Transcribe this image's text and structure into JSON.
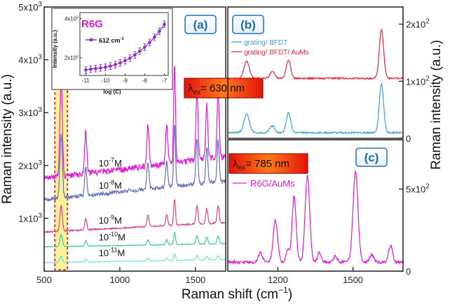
{
  "chart_data": [
    {
      "type": "line",
      "panel_label": "(a)",
      "xlabel": "Raman shift (cm",
      "xlabel_sup": "−1",
      "xlabel_end": ")",
      "ylabel": "Raman intensity (a.u.)",
      "xlim": [
        500,
        1700
      ],
      "ylim": [
        0,
        5000
      ],
      "x_ticks": [
        {
          "v": 500,
          "t": "500"
        },
        {
          "v": 1000,
          "t": "1000"
        },
        {
          "v": 1500,
          "t": "1500"
        }
      ],
      "y_ticks": [
        {
          "v": 1000,
          "m": "1x10",
          "e": "3"
        },
        {
          "v": 2000,
          "m": "2x10",
          "e": "3"
        },
        {
          "v": 3000,
          "m": "3x10",
          "e": "3"
        },
        {
          "v": 4000,
          "m": "4x10",
          "e": "3"
        },
        {
          "v": 5000,
          "m": "5x10",
          "e": "3"
        }
      ],
      "excitation": {
        "prefix": "λ",
        "sub": "ex",
        "text": "= 630 nm"
      },
      "highlight_peak": 612,
      "peaks": [
        {
          "x": 612,
          "w": 8,
          "rel": 1.0
        },
        {
          "x": 775,
          "w": 7,
          "rel": 0.45
        },
        {
          "x": 1186,
          "w": 7,
          "rel": 0.42
        },
        {
          "x": 1310,
          "w": 7,
          "rel": 0.4
        },
        {
          "x": 1362,
          "w": 6,
          "rel": 1.0
        },
        {
          "x": 1510,
          "w": 7,
          "rel": 0.7
        },
        {
          "x": 1575,
          "w": 7,
          "rel": 0.55
        },
        {
          "x": 1650,
          "w": 7,
          "rel": 0.65
        }
      ],
      "series": [
        {
          "name": "10",
          "exp": "-7",
          "unit": "M",
          "color": "#e018d8",
          "baseline": 1750,
          "slope": 0.35,
          "scale": 1850,
          "label_x": 860
        },
        {
          "name": "10",
          "exp": "-8",
          "unit": "M",
          "color": "#6470b8",
          "baseline": 1350,
          "slope": 0.3,
          "scale": 1200,
          "label_x": 860
        },
        {
          "name": "10",
          "exp": "-9",
          "unit": "M",
          "color": "#d8448c",
          "baseline": 740,
          "slope": 0.15,
          "scale": 500,
          "label_x": 860
        },
        {
          "name": "10",
          "exp": "-10",
          "unit": "M",
          "color": "#3cc8a0",
          "baseline": 460,
          "slope": 0.05,
          "scale": 230,
          "label_x": 860
        },
        {
          "name": "10",
          "exp": "-11",
          "unit": "M",
          "color": "#70e0c8",
          "baseline": 160,
          "slope": 0.05,
          "scale": 120,
          "label_x": 860
        }
      ],
      "inset": {
        "title": "R6G",
        "legend": "612 cm",
        "legend_sup": "-1",
        "xlabel": "log (C)",
        "ylabel": "Intensity (a.u.)",
        "xlim": [
          -11.3,
          -6.8
        ],
        "ylim": [
          1100,
          4300
        ],
        "x_ticks": [
          -11,
          -10,
          -9,
          -8,
          -7
        ],
        "y_ticks": [
          {
            "v": 2000,
            "m": "2x10",
            "e": "3"
          },
          {
            "v": 4000,
            "m": "4x10",
            "e": "3"
          }
        ],
        "x": [
          -11,
          -10.75,
          -10.5,
          -10.25,
          -10,
          -9.75,
          -9.5,
          -9.25,
          -9,
          -8.75,
          -8.5,
          -8.25,
          -8,
          -7.75,
          -7.5,
          -7.25,
          -7
        ],
        "y": [
          1380,
          1420,
          1450,
          1480,
          1520,
          1580,
          1650,
          1740,
          1850,
          1980,
          2150,
          2340,
          2540,
          2780,
          3050,
          3350,
          3700
        ],
        "err": 170,
        "color": "#8b2fc9"
      }
    },
    {
      "type": "line",
      "panel_label": "(b)",
      "ylabel": "Raman intensity (a.u.)",
      "xlim": [
        1000,
        1650
      ],
      "ylim": [
        0,
        230
      ],
      "y_ticks": [
        {
          "v": 0,
          "m": "0",
          "e": ""
        },
        {
          "v": 100,
          "m": "1x10",
          "e": "2"
        },
        {
          "v": 200,
          "m": "2x10",
          "e": "2"
        }
      ],
      "series": [
        {
          "name": "grating/ BFDT",
          "color": "#3a9fd8",
          "baseline": 10,
          "scale": 1,
          "peaks": [
            {
              "x": 1070,
              "w": 10,
              "a": 33
            },
            {
              "x": 1165,
              "w": 9,
              "a": 12
            },
            {
              "x": 1225,
              "w": 8,
              "a": 35
            },
            {
              "x": 1570,
              "w": 8,
              "a": 85
            }
          ]
        },
        {
          "name": "grating/ BFDT/ AuMs",
          "color": "#e8253a",
          "baseline": 105,
          "scale": 1,
          "peaks": [
            {
              "x": 1070,
              "w": 10,
              "a": 30
            },
            {
              "x": 1165,
              "w": 9,
              "a": 12
            },
            {
              "x": 1225,
              "w": 8,
              "a": 32
            },
            {
              "x": 1570,
              "w": 8,
              "a": 85
            }
          ]
        }
      ]
    },
    {
      "type": "line",
      "panel_label": "(c)",
      "xlim": [
        1000,
        1700
      ],
      "ylim": [
        0,
        800
      ],
      "x_ticks": [
        {
          "v": 1200,
          "t": "1200"
        },
        {
          "v": 1500,
          "t": "1500"
        }
      ],
      "y_ticks": [
        {
          "v": 0,
          "m": "0",
          "e": ""
        },
        {
          "v": 500,
          "m": "5x10",
          "e": "2"
        }
      ],
      "excitation": {
        "prefix": "λ",
        "sub": "ex",
        "text": "= 785 nm"
      },
      "series": [
        {
          "name": "R6G/AuMs",
          "color": "#e018d8",
          "baseline": 55,
          "peaks": [
            {
              "x": 1130,
              "w": 8,
              "a": 60
            },
            {
              "x": 1190,
              "w": 9,
              "a": 250
            },
            {
              "x": 1240,
              "w": 7,
              "a": 80
            },
            {
              "x": 1265,
              "w": 8,
              "a": 400
            },
            {
              "x": 1318,
              "w": 9,
              "a": 530
            },
            {
              "x": 1365,
              "w": 7,
              "a": 60
            },
            {
              "x": 1430,
              "w": 7,
              "a": 40
            },
            {
              "x": 1510,
              "w": 10,
              "a": 550
            },
            {
              "x": 1575,
              "w": 8,
              "a": 45
            },
            {
              "x": 1650,
              "w": 8,
              "a": 100
            }
          ]
        }
      ]
    }
  ]
}
